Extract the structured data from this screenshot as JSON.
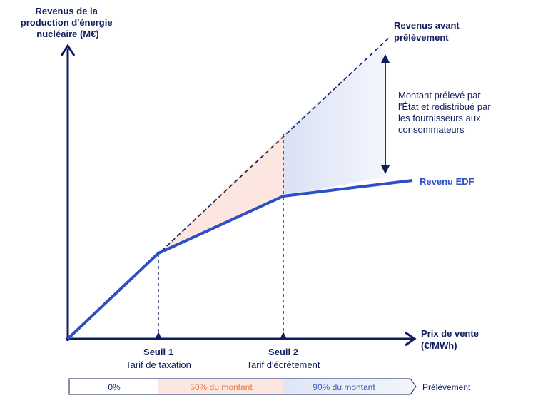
{
  "y_axis_label": [
    "Revenus de la",
    "production d'énergie",
    "nucléaire (M€)"
  ],
  "x_axis_label": [
    "Prix de vente",
    "(€/MWh)"
  ],
  "dashed_line_label": [
    "Revenus avant",
    "prélèvement"
  ],
  "annotation": [
    "Montant prélevé par",
    "l'État et redistribué par",
    "les fournisseurs aux",
    "consommateurs"
  ],
  "edf_line_label": "Revenu EDF",
  "thresholds": [
    {
      "name": "Seuil 1",
      "label": "Tarif de taxation"
    },
    {
      "name": "Seuil 2",
      "label": "Tarif d'écrêtement"
    }
  ],
  "levy_band": {
    "segments": [
      "0%",
      "50% du montant",
      "90% du montant"
    ],
    "label": "Prélèvement"
  }
}
